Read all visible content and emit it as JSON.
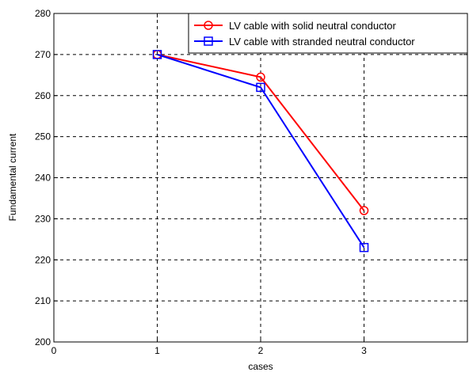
{
  "chart_data": {
    "type": "line",
    "xlabel": "cases",
    "ylabel": "Fundamental current",
    "xlim": [
      0,
      4
    ],
    "ylim": [
      200,
      280
    ],
    "xticks": [
      0,
      1,
      2,
      3
    ],
    "yticks": [
      200,
      210,
      220,
      230,
      240,
      250,
      260,
      270,
      280
    ],
    "grid": true,
    "legend_position": "top-right",
    "series": [
      {
        "name": "LV cable with solid neutral conductor",
        "color": "#ff0000",
        "marker": "circle",
        "x": [
          1,
          2,
          3
        ],
        "y": [
          270,
          264.5,
          232
        ]
      },
      {
        "name": "LV cable with stranded neutral conductor",
        "color": "#0000ff",
        "marker": "square",
        "x": [
          1,
          2,
          3
        ],
        "y": [
          270,
          262,
          223
        ]
      }
    ]
  }
}
